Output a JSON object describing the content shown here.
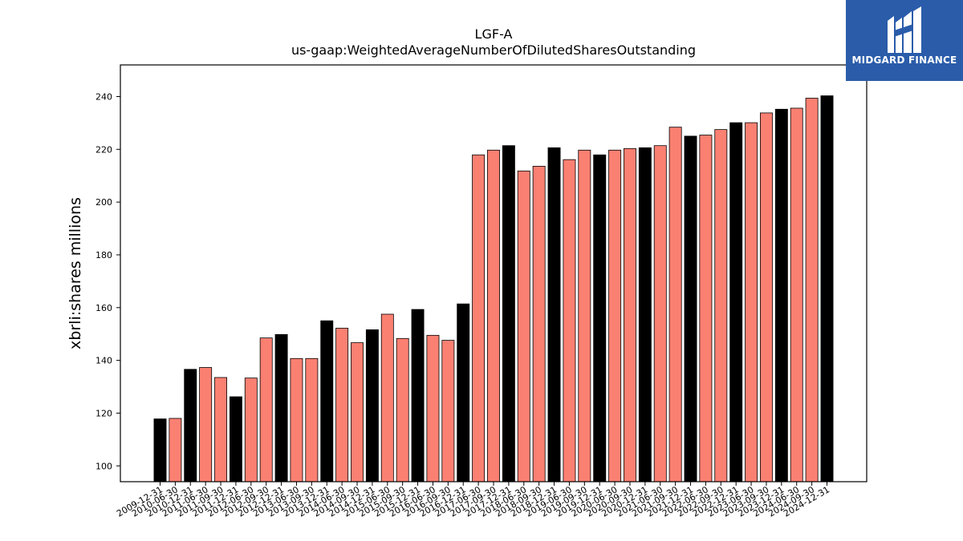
{
  "brand": {
    "name": "MIDGARD FINANCE",
    "bg_color": "#2a5caa"
  },
  "chart_data": {
    "type": "bar",
    "title": "LGF-A",
    "subtitle": "us-gaap:WeightedAverageNumberOfDilutedSharesOutstanding",
    "ylabel": "xbrli:shares millions",
    "xlabel": "",
    "ylim": [
      94,
      252
    ],
    "yticks": [
      100,
      120,
      140,
      160,
      180,
      200,
      220,
      240
    ],
    "grid": false,
    "colors": {
      "fy": "#000000",
      "q": "#fa8072"
    },
    "categories": [
      "2009-12-31",
      "2010-06-30",
      "2010-12-31",
      "2011-06-30",
      "2011-09-30",
      "2011-12-31",
      "2012-06-30",
      "2012-09-30",
      "2012-12-31",
      "2013-06-30",
      "2013-09-30",
      "2013-12-31",
      "2014-06-30",
      "2014-09-30",
      "2014-12-31",
      "2015-06-30",
      "2015-09-30",
      "2015-12-31",
      "2016-06-30",
      "2016-09-30",
      "2016-12-31",
      "2017-06-30",
      "2017-09-30",
      "2017-12-31",
      "2018-06-30",
      "2018-09-30",
      "2018-12-31",
      "2019-06-30",
      "2019-09-30",
      "2019-12-31",
      "2020-06-30",
      "2020-09-30",
      "2020-12-31",
      "2021-06-30",
      "2021-09-30",
      "2021-12-31",
      "2022-06-30",
      "2022-09-30",
      "2022-12-31",
      "2023-06-30",
      "2023-09-30",
      "2023-12-31",
      "2024-06-30",
      "2024-09-30",
      "2024-12-31"
    ],
    "values": [
      117.8,
      118.0,
      136.6,
      137.3,
      133.5,
      126.2,
      133.3,
      148.5,
      149.8,
      140.7,
      140.7,
      155.0,
      152.2,
      146.7,
      151.6,
      157.5,
      148.3,
      159.3,
      149.5,
      147.6,
      161.4,
      217.9,
      219.7,
      221.4,
      211.8,
      213.6,
      220.6,
      216.1,
      219.7,
      217.9,
      219.7,
      220.3,
      220.6,
      221.4,
      228.4,
      225.0,
      225.4,
      227.5,
      230.1,
      230.1,
      233.8,
      235.2,
      235.6,
      239.4,
      240.3
    ],
    "is_fy": [
      true,
      false,
      true,
      false,
      false,
      true,
      false,
      false,
      true,
      false,
      false,
      true,
      false,
      false,
      true,
      false,
      false,
      true,
      false,
      false,
      true,
      false,
      false,
      true,
      false,
      false,
      true,
      false,
      false,
      true,
      false,
      false,
      true,
      false,
      false,
      true,
      false,
      false,
      true,
      false,
      false,
      true,
      false,
      false,
      true
    ]
  }
}
